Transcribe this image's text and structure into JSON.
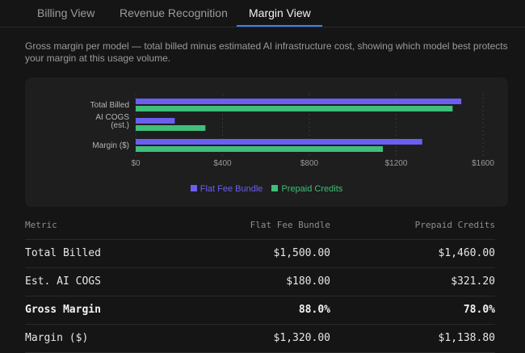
{
  "tabs": [
    {
      "label": "Billing View",
      "active": false
    },
    {
      "label": "Revenue Recognition",
      "active": false
    },
    {
      "label": "Margin View",
      "active": true
    }
  ],
  "description": "Gross margin per model — total billed minus estimated AI infrastructure cost, showing which model best protects your margin at this usage volume.",
  "colors": {
    "flat_fee": "#6b5ff0",
    "prepaid": "#3fbf7a",
    "accent": "#3b82f6"
  },
  "chart_data": {
    "type": "bar",
    "orientation": "horizontal",
    "categories": [
      "Total Billed",
      "AI COGS (est.)",
      "Margin ($)"
    ],
    "series": [
      {
        "name": "Flat Fee Bundle",
        "values": [
          1500,
          180,
          1320
        ]
      },
      {
        "name": "Prepaid Credits",
        "values": [
          1460,
          321.2,
          1138.8
        ]
      }
    ],
    "xlim": [
      0,
      1600
    ],
    "xticks": [
      0,
      400,
      800,
      1200,
      1600
    ],
    "xtick_labels": [
      "$0",
      "$400",
      "$800",
      "$1200",
      "$1600"
    ],
    "grid": true,
    "legend_position": "bottom"
  },
  "table": {
    "headers": [
      "Metric",
      "Flat Fee Bundle",
      "Prepaid Credits"
    ],
    "rows": [
      {
        "cells": [
          "Total Billed",
          "$1,500.00",
          "$1,460.00"
        ],
        "bold": false
      },
      {
        "cells": [
          "Est. AI COGS",
          "$180.00",
          "$321.20"
        ],
        "bold": false
      },
      {
        "cells": [
          "Gross Margin",
          "88.0%",
          "78.0%"
        ],
        "bold": true
      },
      {
        "cells": [
          "Margin ($)",
          "$1,320.00",
          "$1,138.80"
        ],
        "bold": false
      }
    ]
  }
}
